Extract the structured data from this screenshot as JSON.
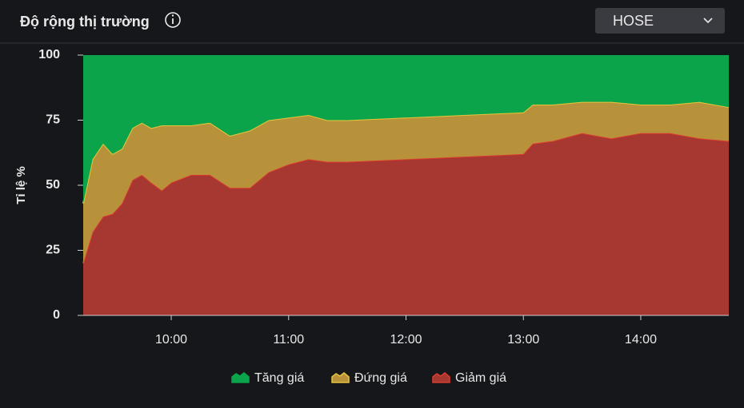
{
  "header": {
    "title": "Độ rộng thị trường",
    "dropdown": "HOSE"
  },
  "chart_data": {
    "type": "stacked-area",
    "y_label": "Tỉ lệ %",
    "x": [
      9.25,
      9.33,
      9.42,
      9.5,
      9.58,
      9.67,
      9.75,
      9.83,
      9.92,
      10.0,
      10.17,
      10.33,
      10.5,
      10.67,
      10.83,
      11.0,
      11.17,
      11.33,
      11.5,
      13.0,
      13.08,
      13.25,
      13.5,
      13.75,
      14.0,
      14.25,
      14.5,
      14.75
    ],
    "series": [
      {
        "name": "Tăng giá",
        "color": "#0ba44b",
        "values": [
          57,
          40,
          34,
          38,
          36,
          28,
          26,
          28,
          27,
          27,
          27,
          26,
          31,
          29,
          25,
          24,
          23,
          25,
          25,
          22,
          19,
          19,
          18,
          18,
          19,
          19,
          18,
          20
        ]
      },
      {
        "name": "Đứng giá",
        "color": "#b8923a",
        "values": [
          23,
          28,
          28,
          23,
          21,
          20,
          20,
          21,
          25,
          22,
          19,
          20,
          20,
          22,
          20,
          18,
          17,
          16,
          16,
          16,
          15,
          14,
          12,
          14,
          11,
          11,
          14,
          13
        ]
      },
      {
        "name": "Giảm giá",
        "color": "#a63731",
        "values": [
          20,
          32,
          38,
          39,
          43,
          52,
          54,
          51,
          48,
          51,
          54,
          54,
          49,
          49,
          55,
          58,
          60,
          59,
          59,
          62,
          66,
          67,
          70,
          68,
          70,
          70,
          68,
          67
        ]
      }
    ],
    "line_colors": [
      "#0ba44b",
      "#e7c53c",
      "#dc3a30"
    ],
    "xlim": [
      9.25,
      14.75
    ],
    "xticks": [
      {
        "value": 10,
        "label": "10:00"
      },
      {
        "value": 11,
        "label": "11:00"
      },
      {
        "value": 12,
        "label": "12:00"
      },
      {
        "value": 13,
        "label": "13:00"
      },
      {
        "value": 14,
        "label": "14:00"
      }
    ],
    "ylim": [
      0,
      100
    ],
    "yticks": [
      0,
      25,
      50,
      75,
      100
    ],
    "grid": false
  }
}
